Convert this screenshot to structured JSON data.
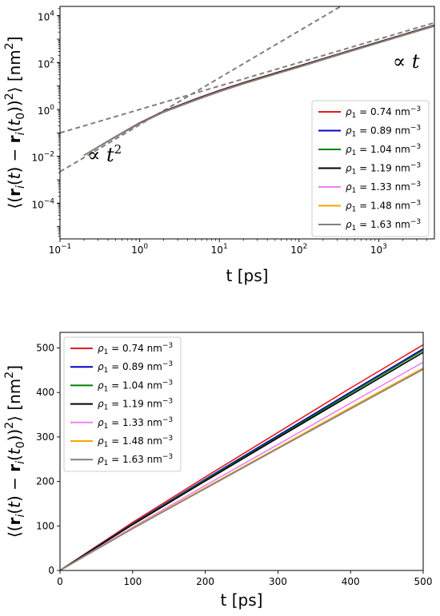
{
  "chart_data": [
    {
      "type": "line",
      "panel": "top",
      "scale": "log-log",
      "xlabel": "t [ps]",
      "ylabel": "⟨(r_i(t) − r_i(t_0))^2⟩ [nm^2]",
      "ylabel_parts": {
        "open": "⟨(",
        "r1": "r",
        "i1": "i",
        "mid1": "(t) − ",
        "r2": "r",
        "i2": "i",
        "mid2": "(t",
        "sub0": "0",
        "close": "))",
        "sq": "2",
        "end": "⟩ [nm",
        "sq2": "2",
        "bracket": "]"
      },
      "xlim": [
        0.1,
        5000
      ],
      "ylim": [
        3e-06,
        25000
      ],
      "x_ticks": [
        {
          "base": "10",
          "exp": "−1",
          "value": 0.1
        },
        {
          "base": "10",
          "exp": "0",
          "value": 1
        },
        {
          "base": "10",
          "exp": "1",
          "value": 10
        },
        {
          "base": "10",
          "exp": "2",
          "value": 100
        },
        {
          "base": "10",
          "exp": "3",
          "value": 1000
        }
      ],
      "y_ticks": [
        {
          "base": "10",
          "exp": "−4",
          "value": 0.0001
        },
        {
          "base": "10",
          "exp": "−2",
          "value": 0.01
        },
        {
          "base": "10",
          "exp": "0",
          "value": 1
        },
        {
          "base": "10",
          "exp": "2",
          "value": 100
        },
        {
          "base": "10",
          "exp": "4",
          "value": 10000
        }
      ],
      "annotations": [
        {
          "prefix": "∝ ",
          "var": "t",
          "exp": "2",
          "x": 0.22,
          "y": 0.006
        },
        {
          "prefix": "∝ ",
          "var": "t",
          "exp": "",
          "x": 1500,
          "y": 60
        }
      ],
      "guide_lines": [
        {
          "name": "ballistic",
          "style": "dashed",
          "color": "#808080",
          "points": [
            [
              0.1,
              0.0022
            ],
            [
              400,
              36000
            ]
          ]
        },
        {
          "name": "diffusive",
          "style": "dashed",
          "color": "#808080",
          "points": [
            [
              0.1,
              0.1
            ],
            [
              5000,
              5000
            ]
          ]
        }
      ],
      "series": [
        {
          "name": "ρ1 = 0.74 nm−3",
          "color": "#e41a1c",
          "x": [
            0.2,
            0.5,
            1,
            2,
            5,
            10,
            20,
            50,
            100,
            200,
            500,
            1000,
            2000,
            5000
          ],
          "y": [
            0.011,
            0.07,
            0.27,
            0.85,
            2.8,
            6.5,
            14,
            36,
            72,
            148,
            380,
            770,
            1560,
            3950
          ]
        },
        {
          "name": "ρ1 = 0.89 nm−3",
          "color": "#0000cc",
          "x": [
            0.2,
            0.5,
            1,
            2,
            5,
            10,
            20,
            50,
            100,
            200,
            500,
            1000,
            2000,
            5000
          ],
          "y": [
            0.011,
            0.07,
            0.265,
            0.83,
            2.75,
            6.3,
            13.6,
            35,
            70,
            145,
            372,
            755,
            1530,
            3880
          ]
        },
        {
          "name": "ρ1 = 1.04 nm−3",
          "color": "#008000",
          "x": [
            0.2,
            0.5,
            1,
            2,
            5,
            10,
            20,
            50,
            100,
            200,
            500,
            1000,
            2000,
            5000
          ],
          "y": [
            0.011,
            0.069,
            0.26,
            0.82,
            2.7,
            6.2,
            13.4,
            34.5,
            69,
            143,
            368,
            748,
            1515,
            3850
          ]
        },
        {
          "name": "ρ1 = 1.19 nm−3",
          "color": "#000000",
          "x": [
            0.2,
            0.5,
            1,
            2,
            5,
            10,
            20,
            50,
            100,
            200,
            500,
            1000,
            2000,
            5000
          ],
          "y": [
            0.011,
            0.069,
            0.26,
            0.81,
            2.65,
            6.1,
            13.2,
            34,
            68,
            141,
            362,
            738,
            1495,
            3800
          ]
        },
        {
          "name": "ρ1 = 1.33 nm−3",
          "color": "#ee82ee",
          "x": [
            0.2,
            0.5,
            1,
            2,
            5,
            10,
            20,
            50,
            100,
            200,
            500,
            1000,
            2000,
            5000
          ],
          "y": [
            0.011,
            0.068,
            0.255,
            0.79,
            2.55,
            5.9,
            12.7,
            32.7,
            65.5,
            136,
            350,
            712,
            1445,
            3670
          ]
        },
        {
          "name": "ρ1 = 1.48 nm−3",
          "color": "#ffa500",
          "x": [
            0.2,
            0.5,
            1,
            2,
            5,
            10,
            20,
            50,
            100,
            200,
            500,
            1000,
            2000,
            5000
          ],
          "y": [
            0.011,
            0.067,
            0.25,
            0.77,
            2.5,
            5.75,
            12.4,
            32,
            64,
            133,
            342,
            696,
            1410,
            3590
          ]
        },
        {
          "name": "ρ1 = 1.63 nm−3",
          "color": "#808080",
          "x": [
            0.2,
            0.5,
            1,
            2,
            5,
            10,
            20,
            50,
            100,
            200,
            500,
            1000,
            2000,
            5000
          ],
          "y": [
            0.011,
            0.067,
            0.25,
            0.76,
            2.45,
            5.7,
            12.3,
            31.6,
            63.5,
            132,
            340,
            692,
            1400,
            3570
          ]
        }
      ],
      "legend": "lower-right",
      "grid": false
    },
    {
      "type": "line",
      "panel": "bottom",
      "scale": "linear",
      "xlabel": "t [ps]",
      "ylabel": "⟨(r_i(t) − r_i(t_0))^2⟩ [nm^2]",
      "xlim": [
        0,
        500
      ],
      "ylim": [
        0,
        535
      ],
      "x_ticks": [
        {
          "label": "0",
          "value": 0
        },
        {
          "label": "100",
          "value": 100
        },
        {
          "label": "200",
          "value": 200
        },
        {
          "label": "300",
          "value": 300
        },
        {
          "label": "400",
          "value": 400
        },
        {
          "label": "500",
          "value": 500
        }
      ],
      "y_ticks": [
        {
          "label": "0",
          "value": 0
        },
        {
          "label": "100",
          "value": 100
        },
        {
          "label": "200",
          "value": 200
        },
        {
          "label": "300",
          "value": 300
        },
        {
          "label": "400",
          "value": 400
        },
        {
          "label": "500",
          "value": 500
        }
      ],
      "series": [
        {
          "name": "ρ1 = 0.74 nm−3",
          "color": "#e41a1c",
          "x": [
            0,
            100,
            200,
            300,
            400,
            500
          ],
          "y": [
            0,
            108,
            210,
            310,
            410,
            507
          ]
        },
        {
          "name": "ρ1 = 0.89 nm−3",
          "color": "#0000cc",
          "x": [
            0,
            100,
            200,
            300,
            400,
            500
          ],
          "y": [
            0,
            105,
            205,
            303,
            401,
            498
          ]
        },
        {
          "name": "ρ1 = 1.04 nm−3",
          "color": "#008000",
          "x": [
            0,
            100,
            200,
            300,
            400,
            500
          ],
          "y": [
            0,
            104,
            203,
            300,
            398,
            495
          ]
        },
        {
          "name": "ρ1 = 1.19 nm−3",
          "color": "#000000",
          "x": [
            0,
            100,
            200,
            300,
            400,
            500
          ],
          "y": [
            0,
            103,
            201,
            298,
            394,
            490
          ]
        },
        {
          "name": "ρ1 = 1.33 nm−3",
          "color": "#ee82ee",
          "x": [
            0,
            100,
            200,
            300,
            400,
            500
          ],
          "y": [
            0,
            97,
            191,
            283,
            376,
            468
          ]
        },
        {
          "name": "ρ1 = 1.48 nm−3",
          "color": "#ffa500",
          "x": [
            0,
            100,
            200,
            300,
            400,
            500
          ],
          "y": [
            0,
            95,
            186,
            276,
            366,
            455
          ]
        },
        {
          "name": "ρ1 = 1.63 nm−3",
          "color": "#808080",
          "x": [
            0,
            100,
            200,
            300,
            400,
            500
          ],
          "y": [
            0,
            94,
            184,
            274,
            363,
            452
          ]
        }
      ],
      "legend": "upper-left",
      "grid": false
    }
  ]
}
